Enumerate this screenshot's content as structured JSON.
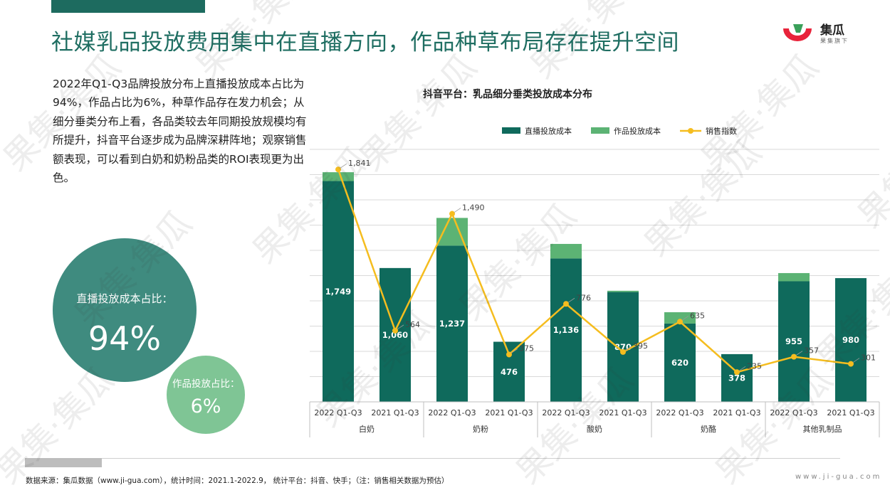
{
  "page": {
    "title": "社媒乳品投放费用集中在直播方向，作品种草布局存在提升空间",
    "logo_name": "集瓜",
    "logo_tag": "果集旗下",
    "description": "2022年Q1-Q3品牌投放分布上直播投放成本占比为94%，作品占比为6%，种草作品存在发力机会；从细分垂类分布上看，各品类较去年同期投放规模均有所提升，抖音平台逐步成为品牌深耕阵地；观察销售额表现，可以看到白奶和奶粉品类的ROI表现更为出色。",
    "live_share_label": "直播投放成本占比：",
    "live_share_value": "94%",
    "work_share_label": "作品投放占比：",
    "work_share_value": "6%",
    "source": "数据来源：集瓜数据（www.ji-gua.com），统计时间：2021.1-2022.9， 统计平台：抖音、快手；（注：销售相关数据为预估）",
    "url": "www.ji-gua.com",
    "watermark": "果集·集瓜"
  },
  "colors": {
    "brand": "#1f6e62",
    "live": "#0f6a5c",
    "work": "#5cb374",
    "sales": "#f5bd1f"
  },
  "chart_data": {
    "type": "bar",
    "title": "抖音平台：乳品细分垂类投放成本分布",
    "legend": [
      "直播投放成本",
      "作品投放成本",
      "销售指数"
    ],
    "legend_position": "top",
    "groups": [
      "白奶",
      "奶粉",
      "酸奶",
      "奶酪",
      "其他乳制品"
    ],
    "categories": [
      "2022 Q1-Q3",
      "2021 Q1-Q3",
      "2022 Q1-Q3",
      "2021 Q1-Q3",
      "2022 Q1-Q3",
      "2021 Q1-Q3",
      "2022 Q1-Q3",
      "2021 Q1-Q3",
      "2022 Q1-Q3",
      "2021 Q1-Q3"
    ],
    "series": [
      {
        "name": "直播投放成本",
        "kind": "bar",
        "values": [
          1749,
          1060,
          1237,
          476,
          1136,
          870,
          620,
          378,
          955,
          980
        ]
      },
      {
        "name": "作品投放成本",
        "kind": "bar",
        "values": [
          70,
          0,
          220,
          0,
          115,
          10,
          90,
          0,
          65,
          0
        ]
      },
      {
        "name": "销售指数",
        "kind": "line",
        "values": [
          1841,
          564,
          1490,
          375,
          776,
          395,
          635,
          235,
          357,
          301
        ]
      }
    ],
    "ylim": [
      0,
      2000
    ],
    "grid": true
  }
}
